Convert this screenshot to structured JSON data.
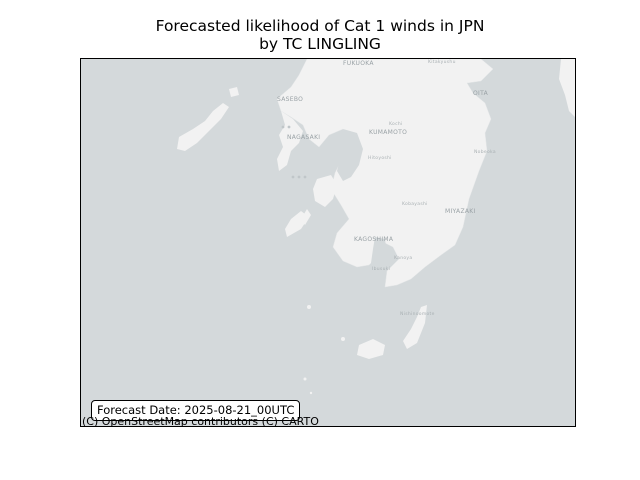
{
  "figure": {
    "title_line1": "Forecasted likelihood of Cat 1 winds in JPN",
    "title_line2": "by TC LINGLING"
  },
  "map": {
    "basemap": "CARTO light (OpenStreetMap)",
    "region": "Kyushu, Japan",
    "colors": {
      "sea": "#d4d9db",
      "land": "#f2f2f2",
      "label": "#9aa2a6"
    },
    "place_labels": {
      "fukuoka": "FUKUOKA",
      "kitakyushu": "Kitakyushu",
      "oita": "OITA",
      "sasebo": "SASEBO",
      "nagasaki": "NAGASAKI",
      "kumamoto": "KUMAMOTO",
      "kochi": "Kochi",
      "nobeoka": "Nobeoka",
      "hitoyoshi": "Hitoyoshi",
      "kobayashi": "Kobayashi",
      "miyazaki": "MIYAZAKI",
      "kagoshima": "KAGOSHIMA",
      "kanoya": "Kanoya",
      "ibusuki": "Ibusuki",
      "tanegashima": "Nishinoomote"
    },
    "forecast_date": "Forecast Date: 2025-08-21_00UTC",
    "attribution": "(C) OpenStreetMap contributors (C) CARTO"
  }
}
